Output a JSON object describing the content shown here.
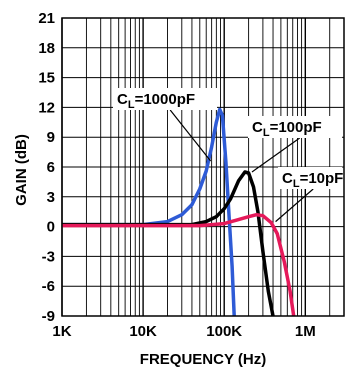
{
  "chart_data": {
    "type": "line",
    "xlabel": "FREQUENCY (Hz)",
    "ylabel": "GAIN (dB)",
    "xscale": "log",
    "xlim": [
      1000,
      3000000
    ],
    "ylim": [
      -9,
      21
    ],
    "grid": true,
    "x_ticks": [
      {
        "value": 1000,
        "label": "1K"
      },
      {
        "value": 10000,
        "label": "10K"
      },
      {
        "value": 100000,
        "label": "100K"
      },
      {
        "value": 1000000,
        "label": "1M"
      }
    ],
    "y_ticks": [
      {
        "value": 21,
        "label": "21"
      },
      {
        "value": 18,
        "label": "18"
      },
      {
        "value": 15,
        "label": "15"
      },
      {
        "value": 12,
        "label": "12"
      },
      {
        "value": 9,
        "label": "9"
      },
      {
        "value": 6,
        "label": "6"
      },
      {
        "value": 3,
        "label": "3"
      },
      {
        "value": 0,
        "label": "0"
      },
      {
        "value": -3,
        "label": "-3"
      },
      {
        "value": -6,
        "label": "-6"
      },
      {
        "value": -9,
        "label": "-9"
      }
    ],
    "series": [
      {
        "name": "CL=1000pF",
        "label_main": "C",
        "label_sub": "L",
        "label_rest": "=1000pF",
        "color": "#2e5bd6",
        "points": [
          [
            1000,
            0.2
          ],
          [
            10000,
            0.2
          ],
          [
            20000,
            0.5
          ],
          [
            30000,
            1.2
          ],
          [
            40000,
            2.2
          ],
          [
            50000,
            3.8
          ],
          [
            60000,
            5.6
          ],
          [
            70000,
            8.0
          ],
          [
            80000,
            10.5
          ],
          [
            88000,
            11.8
          ],
          [
            95000,
            11.2
          ],
          [
            105000,
            6.5
          ],
          [
            115000,
            1.0
          ],
          [
            125000,
            -4.0
          ],
          [
            133000,
            -9
          ]
        ]
      },
      {
        "name": "CL=100pF",
        "label_main": "C",
        "label_sub": "L",
        "label_rest": "=100pF",
        "color": "#000000",
        "points": [
          [
            1000,
            0.2
          ],
          [
            20000,
            0.2
          ],
          [
            40000,
            0.2
          ],
          [
            60000,
            0.5
          ],
          [
            80000,
            1.0
          ],
          [
            100000,
            1.8
          ],
          [
            120000,
            2.8
          ],
          [
            150000,
            4.6
          ],
          [
            180000,
            5.5
          ],
          [
            200000,
            5.4
          ],
          [
            230000,
            4.0
          ],
          [
            260000,
            1.5
          ],
          [
            300000,
            -2.5
          ],
          [
            350000,
            -6.5
          ],
          [
            400000,
            -9
          ]
        ]
      },
      {
        "name": "CL=10pF",
        "label_main": "C",
        "label_sub": "L",
        "label_rest": "=10pF",
        "color": "#e5195a",
        "points": [
          [
            1000,
            0.1
          ],
          [
            20000,
            0.1
          ],
          [
            50000,
            0.1
          ],
          [
            100000,
            0.3
          ],
          [
            150000,
            0.7
          ],
          [
            200000,
            1.0
          ],
          [
            250000,
            1.2
          ],
          [
            300000,
            1.1
          ],
          [
            380000,
            0.4
          ],
          [
            450000,
            -0.7
          ],
          [
            550000,
            -3.5
          ],
          [
            650000,
            -6.5
          ],
          [
            720000,
            -9
          ]
        ]
      }
    ],
    "annotations": [
      {
        "series": 0,
        "at_x": 68000,
        "at_y": 6.6
      },
      {
        "series": 1,
        "at_x": 220000,
        "at_y": 5.5
      },
      {
        "series": 2,
        "at_x": 430000,
        "at_y": 0.5
      }
    ]
  }
}
